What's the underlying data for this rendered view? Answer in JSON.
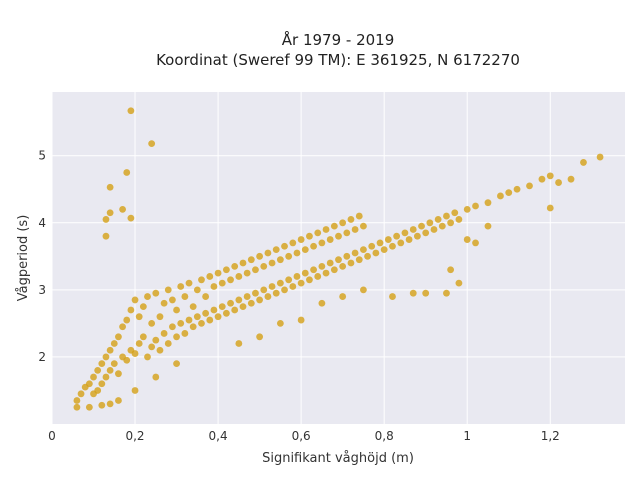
{
  "chart_data": {
    "type": "scatter",
    "title_lines": [
      "År 1979 - 2019",
      "Koordinat (Sweref 99 TM): E 361925, N 6172270"
    ],
    "xlabel": "Signifikant våghöjd (m)",
    "ylabel": "Vågperiod (s)",
    "xlim": [
      0,
      1.38
    ],
    "ylim": [
      1.0,
      5.95
    ],
    "x_ticks": [
      0,
      0.2,
      0.4,
      0.6,
      0.8,
      1.0,
      1.2
    ],
    "x_tick_labels": [
      "0",
      "0,2",
      "0,4",
      "0,6",
      "0,8",
      "1",
      "1,2"
    ],
    "y_ticks": [
      2,
      3,
      4,
      5
    ],
    "y_tick_labels": [
      "2",
      "3",
      "4",
      "5"
    ],
    "grid": true,
    "marker_color": "#D4A017",
    "background_color": "#E9E9F1",
    "series": [
      {
        "points": [
          [
            0.06,
            1.25
          ],
          [
            0.06,
            1.35
          ],
          [
            0.07,
            1.45
          ],
          [
            0.08,
            1.55
          ],
          [
            0.09,
            1.6
          ],
          [
            0.1,
            1.45
          ],
          [
            0.1,
            1.7
          ],
          [
            0.11,
            1.5
          ],
          [
            0.11,
            1.8
          ],
          [
            0.12,
            1.6
          ],
          [
            0.12,
            1.9
          ],
          [
            0.13,
            1.7
          ],
          [
            0.13,
            2.0
          ],
          [
            0.14,
            1.8
          ],
          [
            0.14,
            2.1
          ],
          [
            0.15,
            1.9
          ],
          [
            0.15,
            2.2
          ],
          [
            0.16,
            1.75
          ],
          [
            0.16,
            2.3
          ],
          [
            0.17,
            2.0
          ],
          [
            0.17,
            2.45
          ],
          [
            0.18,
            1.95
          ],
          [
            0.18,
            2.55
          ],
          [
            0.19,
            2.1
          ],
          [
            0.19,
            2.7
          ],
          [
            0.2,
            2.05
          ],
          [
            0.2,
            2.85
          ],
          [
            0.21,
            2.2
          ],
          [
            0.21,
            2.6
          ],
          [
            0.22,
            2.3
          ],
          [
            0.22,
            2.75
          ],
          [
            0.23,
            2.0
          ],
          [
            0.23,
            2.9
          ],
          [
            0.24,
            2.15
          ],
          [
            0.24,
            2.5
          ],
          [
            0.25,
            2.25
          ],
          [
            0.25,
            2.95
          ],
          [
            0.26,
            2.1
          ],
          [
            0.26,
            2.6
          ],
          [
            0.27,
            2.35
          ],
          [
            0.27,
            2.8
          ],
          [
            0.28,
            2.2
          ],
          [
            0.28,
            3.0
          ],
          [
            0.29,
            2.45
          ],
          [
            0.29,
            2.85
          ],
          [
            0.3,
            2.3
          ],
          [
            0.3,
            2.7
          ],
          [
            0.31,
            2.5
          ],
          [
            0.31,
            3.05
          ],
          [
            0.32,
            2.35
          ],
          [
            0.32,
            2.9
          ],
          [
            0.33,
            2.55
          ],
          [
            0.33,
            3.1
          ],
          [
            0.34,
            2.45
          ],
          [
            0.34,
            2.75
          ],
          [
            0.35,
            2.6
          ],
          [
            0.35,
            3.0
          ],
          [
            0.36,
            2.5
          ],
          [
            0.36,
            3.15
          ],
          [
            0.37,
            2.65
          ],
          [
            0.37,
            2.9
          ],
          [
            0.38,
            2.55
          ],
          [
            0.38,
            3.2
          ],
          [
            0.39,
            2.7
          ],
          [
            0.39,
            3.05
          ],
          [
            0.4,
            2.6
          ],
          [
            0.4,
            3.25
          ],
          [
            0.41,
            2.75
          ],
          [
            0.41,
            3.1
          ],
          [
            0.42,
            2.65
          ],
          [
            0.42,
            3.3
          ],
          [
            0.43,
            2.8
          ],
          [
            0.43,
            3.15
          ],
          [
            0.44,
            2.7
          ],
          [
            0.44,
            3.35
          ],
          [
            0.45,
            2.85
          ],
          [
            0.45,
            3.2
          ],
          [
            0.46,
            2.75
          ],
          [
            0.46,
            3.4
          ],
          [
            0.47,
            2.9
          ],
          [
            0.47,
            3.25
          ],
          [
            0.48,
            2.8
          ],
          [
            0.48,
            3.45
          ],
          [
            0.49,
            2.95
          ],
          [
            0.49,
            3.3
          ],
          [
            0.5,
            2.85
          ],
          [
            0.5,
            3.5
          ],
          [
            0.51,
            3.0
          ],
          [
            0.51,
            3.35
          ],
          [
            0.52,
            2.9
          ],
          [
            0.52,
            3.55
          ],
          [
            0.53,
            3.05
          ],
          [
            0.53,
            3.4
          ],
          [
            0.54,
            2.95
          ],
          [
            0.54,
            3.6
          ],
          [
            0.55,
            3.1
          ],
          [
            0.55,
            3.45
          ],
          [
            0.56,
            3.0
          ],
          [
            0.56,
            3.65
          ],
          [
            0.57,
            3.15
          ],
          [
            0.57,
            3.5
          ],
          [
            0.58,
            3.05
          ],
          [
            0.58,
            3.7
          ],
          [
            0.59,
            3.2
          ],
          [
            0.59,
            3.55
          ],
          [
            0.6,
            3.1
          ],
          [
            0.6,
            3.75
          ],
          [
            0.61,
            3.25
          ],
          [
            0.61,
            3.6
          ],
          [
            0.62,
            3.15
          ],
          [
            0.62,
            3.8
          ],
          [
            0.63,
            3.3
          ],
          [
            0.63,
            3.65
          ],
          [
            0.64,
            3.2
          ],
          [
            0.64,
            3.85
          ],
          [
            0.65,
            3.35
          ],
          [
            0.65,
            3.7
          ],
          [
            0.66,
            3.25
          ],
          [
            0.66,
            3.9
          ],
          [
            0.67,
            3.4
          ],
          [
            0.67,
            3.75
          ],
          [
            0.68,
            3.3
          ],
          [
            0.68,
            3.95
          ],
          [
            0.69,
            3.45
          ],
          [
            0.69,
            3.8
          ],
          [
            0.7,
            3.35
          ],
          [
            0.7,
            4.0
          ],
          [
            0.71,
            3.5
          ],
          [
            0.71,
            3.85
          ],
          [
            0.72,
            3.4
          ],
          [
            0.72,
            4.05
          ],
          [
            0.73,
            3.55
          ],
          [
            0.73,
            3.9
          ],
          [
            0.74,
            3.45
          ],
          [
            0.74,
            4.1
          ],
          [
            0.75,
            3.6
          ],
          [
            0.75,
            3.95
          ],
          [
            0.76,
            3.5
          ],
          [
            0.77,
            3.65
          ],
          [
            0.78,
            3.55
          ],
          [
            0.79,
            3.7
          ],
          [
            0.8,
            3.6
          ],
          [
            0.81,
            3.75
          ],
          [
            0.82,
            3.65
          ],
          [
            0.83,
            3.8
          ],
          [
            0.84,
            3.7
          ],
          [
            0.85,
            3.85
          ],
          [
            0.86,
            3.75
          ],
          [
            0.87,
            3.9
          ],
          [
            0.88,
            3.8
          ],
          [
            0.89,
            3.95
          ],
          [
            0.9,
            3.85
          ],
          [
            0.91,
            4.0
          ],
          [
            0.92,
            3.9
          ],
          [
            0.93,
            4.05
          ],
          [
            0.94,
            3.95
          ],
          [
            0.95,
            4.1
          ],
          [
            0.96,
            4.0
          ],
          [
            0.97,
            4.15
          ],
          [
            0.98,
            4.05
          ],
          [
            1.0,
            4.2
          ],
          [
            1.02,
            4.25
          ],
          [
            1.05,
            4.3
          ],
          [
            1.08,
            4.4
          ],
          [
            1.1,
            4.45
          ],
          [
            1.12,
            4.5
          ],
          [
            1.15,
            4.55
          ],
          [
            1.18,
            4.65
          ],
          [
            1.2,
            4.7
          ],
          [
            1.22,
            4.6
          ],
          [
            1.25,
            4.65
          ],
          [
            1.28,
            4.9
          ],
          [
            1.32,
            4.98
          ],
          [
            0.19,
            5.67
          ],
          [
            0.24,
            5.18
          ],
          [
            0.18,
            4.75
          ],
          [
            0.14,
            4.53
          ],
          [
            0.14,
            4.15
          ],
          [
            0.13,
            4.05
          ],
          [
            0.17,
            4.2
          ],
          [
            0.19,
            4.07
          ],
          [
            0.13,
            3.8
          ],
          [
            0.82,
            2.9
          ],
          [
            0.87,
            2.95
          ],
          [
            0.9,
            2.95
          ],
          [
            0.95,
            2.95
          ],
          [
            0.98,
            3.1
          ],
          [
            1.0,
            3.75
          ],
          [
            1.02,
            3.7
          ],
          [
            0.96,
            3.3
          ],
          [
            1.2,
            4.22
          ],
          [
            1.05,
            3.95
          ],
          [
            0.7,
            2.9
          ],
          [
            0.75,
            3.0
          ],
          [
            0.65,
            2.8
          ],
          [
            0.6,
            2.55
          ],
          [
            0.55,
            2.5
          ],
          [
            0.5,
            2.3
          ],
          [
            0.45,
            2.2
          ],
          [
            0.3,
            1.9
          ],
          [
            0.25,
            1.7
          ],
          [
            0.2,
            1.5
          ],
          [
            0.16,
            1.35
          ],
          [
            0.14,
            1.3
          ],
          [
            0.12,
            1.28
          ],
          [
            0.09,
            1.25
          ]
        ]
      }
    ]
  }
}
